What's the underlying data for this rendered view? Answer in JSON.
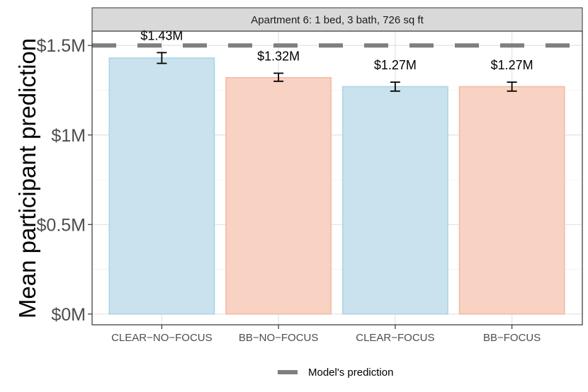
{
  "chart_data": {
    "type": "bar",
    "title": "",
    "facet_label": "Apartment 6: 1 bed, 3 bath, 726 sq ft",
    "ylabel": "Mean participant prediction",
    "xlabel": "",
    "categories": [
      "CLEAR−NO−FOCUS",
      "BB−NO−FOCUS",
      "CLEAR−FOCUS",
      "BB−FOCUS"
    ],
    "values": [
      1.43,
      1.32,
      1.27,
      1.27
    ],
    "value_labels": [
      "$1.43M",
      "$1.32M",
      "$1.27M",
      "$1.27M"
    ],
    "error_low": [
      1.4,
      1.3,
      1.245,
      1.245
    ],
    "error_high": [
      1.46,
      1.345,
      1.295,
      1.295
    ],
    "bar_colors": [
      "#c9e2ee",
      "#f8d2c2"
    ],
    "bar_outline_colors": [
      "#a9d4e6",
      "#f3b9a3"
    ],
    "ylim": [
      -0.06,
      1.58
    ],
    "yticks": [
      0,
      0.5,
      1,
      1.5
    ],
    "ytick_labels": [
      "$0M",
      "$0.5M",
      "$1M",
      "$1.5M"
    ],
    "reference_line": {
      "value": 1.5,
      "style": "dashed",
      "color": "#7f7f7f",
      "label": "Model's prediction"
    },
    "grid": true,
    "legend": {
      "position": "bottom",
      "entries": [
        "Model's prediction"
      ]
    }
  }
}
